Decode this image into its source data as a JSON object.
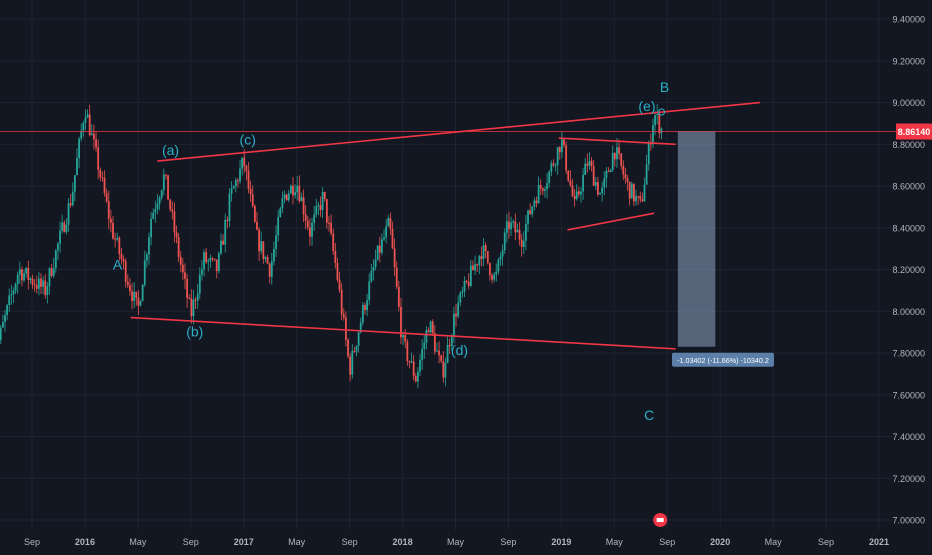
{
  "chart_data": {
    "type": "candlestick",
    "title": "",
    "xlabel": "",
    "ylabel": "",
    "ylim": [
      6.97,
      9.45
    ],
    "grid": true,
    "price_axis": {
      "side": "right",
      "ticks": [
        "7.00000",
        "7.20000",
        "7.40000",
        "7.60000",
        "7.80000",
        "8.00000",
        "8.20000",
        "8.40000",
        "8.60000",
        "8.80000",
        "9.00000",
        "9.20000",
        "9.40000"
      ],
      "tick_values": [
        7.0,
        7.2,
        7.4,
        7.6,
        7.8,
        8.0,
        8.2,
        8.4,
        8.6,
        8.8,
        9.0,
        9.2,
        9.4
      ]
    },
    "time_axis": {
      "ticks": [
        "Sep",
        "2016",
        "May",
        "Sep",
        "2017",
        "May",
        "Sep",
        "2018",
        "May",
        "Sep",
        "2019",
        "May",
        "Sep",
        "2020",
        "May",
        "Sep",
        "2021"
      ],
      "tick_dates": [
        "2015-09",
        "2016-01",
        "2016-05",
        "2016-09",
        "2017-01",
        "2017-05",
        "2017-09",
        "2018-01",
        "2018-05",
        "2018-09",
        "2019-01",
        "2019-05",
        "2019-09",
        "2020-01",
        "2020-05",
        "2020-09",
        "2021-01"
      ]
    },
    "last_price": {
      "value": 8.8614,
      "label": "8.86140"
    },
    "price_path": [
      [
        "2015-06",
        7.75
      ],
      [
        "2015-08",
        8.2
      ],
      [
        "2015-10",
        8.1
      ],
      [
        "2015-12",
        8.55
      ],
      [
        "2016-01",
        8.98
      ],
      [
        "2016-02",
        8.7
      ],
      [
        "2016-03",
        8.4
      ],
      [
        "2016-04",
        8.2
      ],
      [
        "2016-05",
        8.0
      ],
      [
        "2016-06",
        8.45
      ],
      [
        "2016-07",
        8.65
      ],
      [
        "2016-08",
        8.3
      ],
      [
        "2016-09",
        7.98
      ],
      [
        "2016-10",
        8.25
      ],
      [
        "2016-11",
        8.2
      ],
      [
        "2016-12",
        8.55
      ],
      [
        "2017-01",
        8.72
      ],
      [
        "2017-02",
        8.35
      ],
      [
        "2017-03",
        8.2
      ],
      [
        "2017-04",
        8.55
      ],
      [
        "2017-05",
        8.62
      ],
      [
        "2017-06",
        8.38
      ],
      [
        "2017-07",
        8.55
      ],
      [
        "2017-08",
        8.2
      ],
      [
        "2017-09",
        7.72
      ],
      [
        "2017-10",
        8.0
      ],
      [
        "2017-11",
        8.25
      ],
      [
        "2017-12",
        8.42
      ],
      [
        "2018-01",
        7.85
      ],
      [
        "2018-02",
        7.68
      ],
      [
        "2018-03",
        7.95
      ],
      [
        "2018-04",
        7.7
      ],
      [
        "2018-05",
        8.0
      ],
      [
        "2018-06",
        8.15
      ],
      [
        "2018-07",
        8.3
      ],
      [
        "2018-08",
        8.15
      ],
      [
        "2018-09",
        8.42
      ],
      [
        "2018-10",
        8.35
      ],
      [
        "2018-11",
        8.55
      ],
      [
        "2018-12",
        8.65
      ],
      [
        "2019-01",
        8.82
      ],
      [
        "2019-02",
        8.5
      ],
      [
        "2019-03",
        8.72
      ],
      [
        "2019-04",
        8.55
      ],
      [
        "2019-05",
        8.78
      ],
      [
        "2019-06",
        8.6
      ],
      [
        "2019-07",
        8.5
      ],
      [
        "2019-08",
        8.95
      ],
      [
        "2019-08-20",
        8.8614
      ]
    ],
    "trendlines": [
      {
        "name": "upper-channel",
        "points": [
          [
            "2016-06-15",
            8.72
          ],
          [
            "2020-04-01",
            9.0
          ]
        ],
        "color": "#f23645"
      },
      {
        "name": "lower-channel",
        "points": [
          [
            "2016-04-15",
            7.97
          ],
          [
            "2019-09-20",
            7.82
          ]
        ],
        "color": "#f23645"
      },
      {
        "name": "triangle-top",
        "points": [
          [
            "2018-12-25",
            8.83
          ],
          [
            "2019-09-20",
            8.8
          ]
        ],
        "color": "#f23645"
      },
      {
        "name": "triangle-bottom",
        "points": [
          [
            "2019-01-15",
            8.39
          ],
          [
            "2019-08-01",
            8.47
          ]
        ],
        "color": "#f23645"
      },
      {
        "name": "last-price-line",
        "points": [
          [
            "2015-06-01",
            8.8614
          ],
          [
            "2021-03-01",
            8.8614
          ]
        ],
        "color": "#f23645"
      }
    ],
    "wave_labels": [
      {
        "text": "A",
        "date": "2016-03-15",
        "value": 8.2
      },
      {
        "text": "(a)",
        "date": "2016-07-15",
        "value": 8.75
      },
      {
        "text": "(b)",
        "date": "2016-09-10",
        "value": 7.88
      },
      {
        "text": "(c)",
        "date": "2017-01-10",
        "value": 8.8
      },
      {
        "text": "(d)",
        "date": "2018-05-10",
        "value": 7.79
      },
      {
        "text": "(e)",
        "date": "2019-07-15",
        "value": 8.96
      },
      {
        "text": "B",
        "date": "2019-08-25",
        "value": 9.05
      },
      {
        "text": "C",
        "date": "2019-07-20",
        "value": 7.48
      }
    ],
    "measure_box": {
      "start_date": "2019-09-25",
      "end_date": "2019-12-20",
      "top": 8.8614,
      "bottom": 7.83,
      "label": "-1.03402 (-11.66%) -10340.2"
    },
    "colors": {
      "background": "#131722",
      "grid": "#1f2330",
      "up": "#26a69a",
      "down": "#ef5350",
      "trendline": "#f23645",
      "label": "#2ab0c8",
      "axis_text": "#b2b5be",
      "price_badge": "#f23645",
      "measure_fill": "#8ea4c3",
      "measure_label_bg": "#5b7fa8"
    }
  }
}
